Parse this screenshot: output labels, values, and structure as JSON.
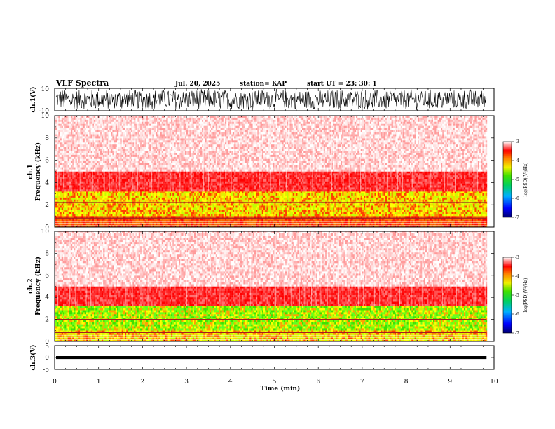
{
  "header": {
    "title": "VLF Spectra",
    "date": "Jul. 20, 2025",
    "station": "station= KAP",
    "start_ut": "start UT = 23: 30: 1"
  },
  "chart_data": [
    {
      "type": "line",
      "name": "ch1-waveform",
      "ylabel": "ch.1(V)",
      "ylim": [
        -10,
        10
      ],
      "yticks": [
        "10",
        "-10"
      ],
      "xlim": [
        0,
        10
      ],
      "data_extent_min": 9.83,
      "description_values": "noisy broadband waveform spanning roughly -7 to +10 V"
    },
    {
      "type": "heatmap",
      "name": "ch1-spectrogram",
      "ylabel": "ch.1\nFrequency (kHz)",
      "ylim": [
        0,
        10
      ],
      "yticks": [
        "0",
        "2",
        "4",
        "6",
        "8",
        "10"
      ],
      "xlim": [
        0,
        10
      ],
      "data_extent_min": 9.83,
      "colorbar": {
        "label": "log(PSD)(V²/Hz)",
        "range": [
          -7,
          -3
        ],
        "ticks": [
          "-3",
          "-4",
          "-5",
          "-6",
          "-7"
        ]
      },
      "bands_khz": [
        {
          "from": 0.0,
          "to": 1.0,
          "level": "red-orange"
        },
        {
          "from": 1.0,
          "to": 3.2,
          "level": "yellow-green"
        },
        {
          "from": 3.2,
          "to": 5.0,
          "level": "red"
        },
        {
          "from": 5.0,
          "to": 10.0,
          "level": "light-red"
        }
      ],
      "lines_khz": [
        2.2,
        0.8
      ]
    },
    {
      "type": "heatmap",
      "name": "ch2-spectrogram",
      "ylabel": "ch.2\nFrequency (kHz)",
      "ylim": [
        0,
        10
      ],
      "yticks": [
        "0",
        "2",
        "4",
        "6",
        "8",
        "10"
      ],
      "xlim": [
        0,
        10
      ],
      "data_extent_min": 9.83,
      "colorbar": {
        "label": "log(PSD)(V²/Hz)",
        "range": [
          -7,
          -3
        ],
        "ticks": [
          "-3",
          "-4",
          "-5",
          "-6",
          "-7"
        ]
      },
      "bands_khz": [
        {
          "from": 0.0,
          "to": 1.0,
          "level": "yellow-green"
        },
        {
          "from": 1.0,
          "to": 3.2,
          "level": "green-yellow"
        },
        {
          "from": 3.2,
          "to": 5.0,
          "level": "red"
        },
        {
          "from": 5.0,
          "to": 10.0,
          "level": "light-red"
        }
      ],
      "lines_khz": [
        2.0,
        0.8
      ]
    },
    {
      "type": "line",
      "name": "ch3-waveform",
      "ylabel": "ch.3(V)",
      "ylim": [
        -5,
        5
      ],
      "yticks": [
        "5",
        "0",
        "-5"
      ],
      "xlim": [
        0,
        10
      ],
      "data_extent_min": 9.83,
      "level_v": 0,
      "amplitude_v": 0.6
    }
  ],
  "x_axis": {
    "label": "Time (min)",
    "ticks": [
      "0",
      "1",
      "2",
      "3",
      "4",
      "5",
      "6",
      "7",
      "8",
      "9",
      "10"
    ]
  }
}
